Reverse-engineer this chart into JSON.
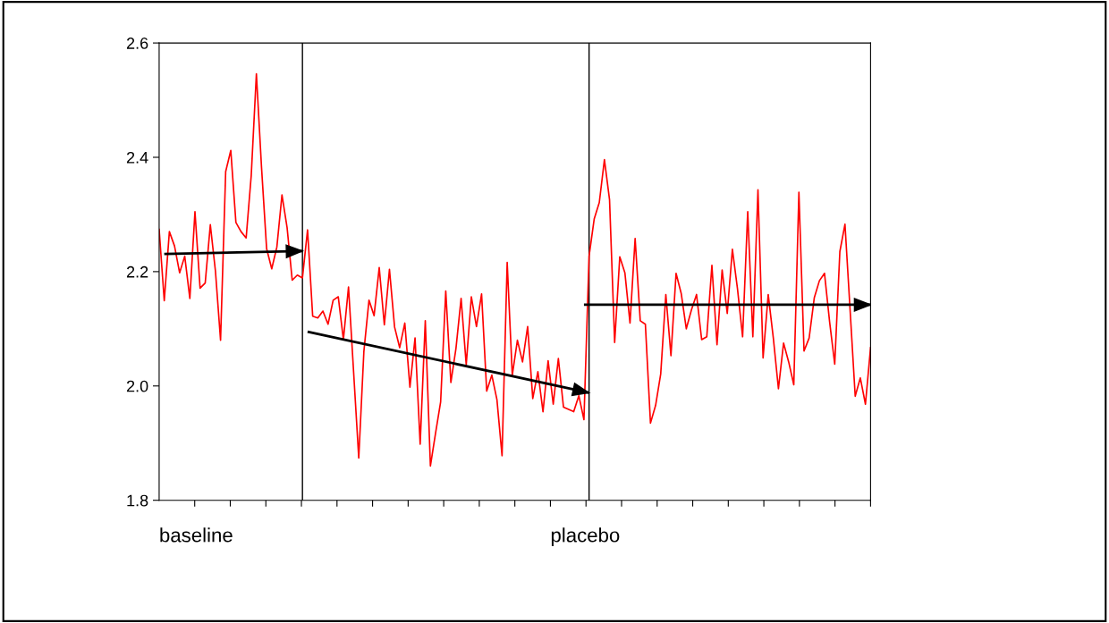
{
  "chart_data": {
    "type": "line",
    "categories": [
      null,
      null,
      null,
      null,
      null,
      null,
      null,
      null,
      null,
      null,
      null,
      null,
      null,
      null,
      null,
      null,
      null,
      null,
      null,
      null,
      null,
      null,
      null,
      null,
      null,
      null,
      null,
      null,
      null,
      null,
      null,
      null,
      null,
      null,
      null,
      null,
      null,
      null,
      null,
      null,
      null,
      null,
      null,
      null,
      null,
      null,
      null,
      null,
      null,
      null,
      null,
      null,
      null,
      null,
      null,
      null,
      null,
      null,
      null,
      null,
      null,
      null,
      null,
      null,
      null,
      null,
      null,
      null,
      null,
      null,
      null,
      null,
      null,
      null,
      null,
      null,
      null,
      null,
      null,
      null,
      null,
      null,
      null,
      null,
      null,
      null,
      null,
      null,
      null,
      null,
      null,
      null,
      null,
      null,
      null,
      null,
      null,
      null,
      null,
      null,
      null,
      null,
      null,
      null,
      null,
      null,
      null,
      null,
      null,
      null,
      null,
      null,
      null,
      null,
      null,
      null,
      null,
      null,
      null,
      null,
      null,
      null,
      null,
      null,
      null,
      null,
      null,
      null,
      null,
      null,
      null,
      null,
      null,
      null,
      null,
      null,
      null,
      null,
      null,
      null
    ],
    "ylim": [
      1.8,
      2.6
    ],
    "yticks": [
      {
        "value": 1.8,
        "label": "1.8"
      },
      {
        "value": 2.0,
        "label": "2.0"
      },
      {
        "value": 2.2,
        "label": "2.2"
      },
      {
        "value": 2.4,
        "label": "2.4"
      },
      {
        "value": 2.6,
        "label": "2.6"
      }
    ],
    "annotations": [
      "baseline",
      "placebo"
    ],
    "series": [
      {
        "color": "#ff0000",
        "values": [
          2.274,
          2.149,
          2.27,
          2.245,
          2.198,
          2.227,
          2.153,
          2.305,
          2.171,
          2.18,
          2.282,
          2.201,
          2.08,
          2.375,
          2.412,
          2.286,
          2.27,
          2.259,
          2.369,
          2.546,
          2.383,
          2.24,
          2.205,
          2.243,
          2.334,
          2.277,
          2.185,
          2.194,
          2.189,
          2.273,
          2.122,
          2.119,
          2.131,
          2.108,
          2.15,
          2.156,
          2.081,
          2.173,
          2.024,
          1.874,
          2.06,
          2.15,
          2.123,
          2.207,
          2.107,
          2.204,
          2.103,
          2.067,
          2.11,
          1.998,
          2.084,
          1.898,
          2.114,
          1.86,
          1.917,
          1.972,
          2.166,
          2.006,
          2.066,
          2.153,
          2.037,
          2.156,
          2.104,
          2.161,
          1.991,
          2.019,
          1.976,
          1.878,
          2.216,
          2.019,
          2.08,
          2.042,
          2.104,
          1.978,
          2.025,
          1.955,
          2.044,
          1.968,
          2.048,
          1.963,
          1.959,
          1.955,
          1.983,
          1.941,
          2.227,
          2.292,
          2.321,
          2.396,
          2.326,
          2.076,
          2.226,
          2.198,
          2.11,
          2.258,
          2.114,
          2.108,
          1.935,
          1.966,
          2.021,
          2.16,
          2.053,
          2.197,
          2.162,
          2.1,
          2.133,
          2.16,
          2.081,
          2.086,
          2.211,
          2.072,
          2.203,
          2.127,
          2.239,
          2.17,
          2.086,
          2.305,
          2.086,
          2.343,
          2.049,
          2.16,
          2.084,
          1.995,
          2.075,
          2.042,
          2.002,
          2.339,
          2.061,
          2.084,
          2.154,
          2.184,
          2.197,
          2.112,
          2.038,
          2.235,
          2.283,
          2.133,
          1.982,
          2.014,
          1.968,
          2.067
        ]
      },
      {
        "color": "#000000",
        "values": [
          null,
          2.231,
          null,
          null,
          null,
          null,
          null,
          null,
          null,
          null,
          null,
          null,
          null,
          null,
          null,
          null,
          null,
          null,
          null,
          null,
          null,
          null,
          null,
          null,
          null,
          null,
          null,
          null,
          2.236,
          null,
          null,
          null,
          null,
          null,
          null,
          null,
          null,
          null,
          null,
          null,
          null,
          null,
          null,
          null,
          null,
          null,
          null,
          null,
          null,
          null,
          null,
          null,
          null,
          null,
          null,
          null,
          null,
          null,
          null,
          null,
          null,
          null,
          null,
          null,
          null,
          null,
          null,
          null,
          null,
          null,
          null,
          null,
          null,
          null,
          null,
          null,
          null,
          null,
          null,
          null,
          null,
          null,
          null,
          null,
          null,
          null,
          null,
          null,
          null,
          null,
          null,
          null,
          null,
          null,
          null,
          null,
          null,
          null,
          null,
          null,
          null,
          null,
          null,
          null,
          null,
          null,
          null,
          null,
          null,
          null,
          null,
          null,
          null,
          null,
          null,
          null,
          null,
          null,
          null,
          null,
          null,
          null,
          null,
          null,
          null,
          null,
          null,
          null,
          null,
          null,
          null,
          null,
          null,
          null,
          null,
          null,
          null,
          null,
          null,
          null
        ]
      },
      {
        "color": "#000000",
        "values": [
          null,
          null,
          null,
          null,
          null,
          null,
          null,
          null,
          null,
          null,
          null,
          null,
          null,
          null,
          null,
          null,
          null,
          null,
          null,
          null,
          null,
          null,
          null,
          null,
          null,
          null,
          null,
          null,
          null,
          2.095,
          null,
          null,
          null,
          null,
          null,
          null,
          null,
          null,
          null,
          null,
          null,
          null,
          null,
          null,
          null,
          null,
          null,
          null,
          null,
          null,
          null,
          null,
          null,
          null,
          null,
          null,
          null,
          null,
          null,
          null,
          null,
          null,
          null,
          null,
          null,
          null,
          null,
          null,
          null,
          null,
          null,
          null,
          null,
          null,
          null,
          null,
          null,
          null,
          null,
          null,
          null,
          null,
          null,
          null,
          1.988,
          null,
          null,
          null,
          null,
          null,
          null,
          null,
          null,
          null,
          null,
          null,
          null,
          null,
          null,
          null,
          null,
          null,
          null,
          null,
          null,
          null,
          null,
          null,
          null,
          null,
          null,
          null,
          null,
          null,
          null,
          null,
          null,
          null,
          null,
          null,
          null,
          null,
          null,
          null,
          null,
          null,
          null,
          null,
          null,
          null,
          null,
          null,
          null,
          null,
          null,
          null,
          null,
          null,
          null,
          null
        ]
      },
      {
        "color": "#000000",
        "values": [
          null,
          null,
          null,
          null,
          null,
          null,
          null,
          null,
          null,
          null,
          null,
          null,
          null,
          null,
          null,
          null,
          null,
          null,
          null,
          null,
          null,
          null,
          null,
          null,
          null,
          null,
          null,
          null,
          null,
          null,
          null,
          null,
          null,
          null,
          null,
          null,
          null,
          null,
          null,
          null,
          null,
          null,
          null,
          null,
          null,
          null,
          null,
          null,
          null,
          null,
          null,
          null,
          null,
          null,
          null,
          null,
          null,
          null,
          null,
          null,
          null,
          null,
          null,
          null,
          null,
          null,
          null,
          null,
          null,
          null,
          null,
          null,
          null,
          null,
          null,
          null,
          null,
          null,
          null,
          null,
          null,
          null,
          null,
          2.142,
          null,
          null,
          null,
          null,
          null,
          null,
          null,
          null,
          null,
          null,
          null,
          null,
          null,
          null,
          null,
          null,
          null,
          null,
          null,
          null,
          null,
          null,
          null,
          null,
          null,
          null,
          null,
          null,
          null,
          null,
          null,
          null,
          null,
          null,
          null,
          null,
          null,
          null,
          null,
          null,
          null,
          null,
          null,
          null,
          null,
          null,
          null,
          null,
          null,
          null,
          null,
          null,
          null,
          null,
          null,
          2.142
        ]
      }
    ]
  }
}
